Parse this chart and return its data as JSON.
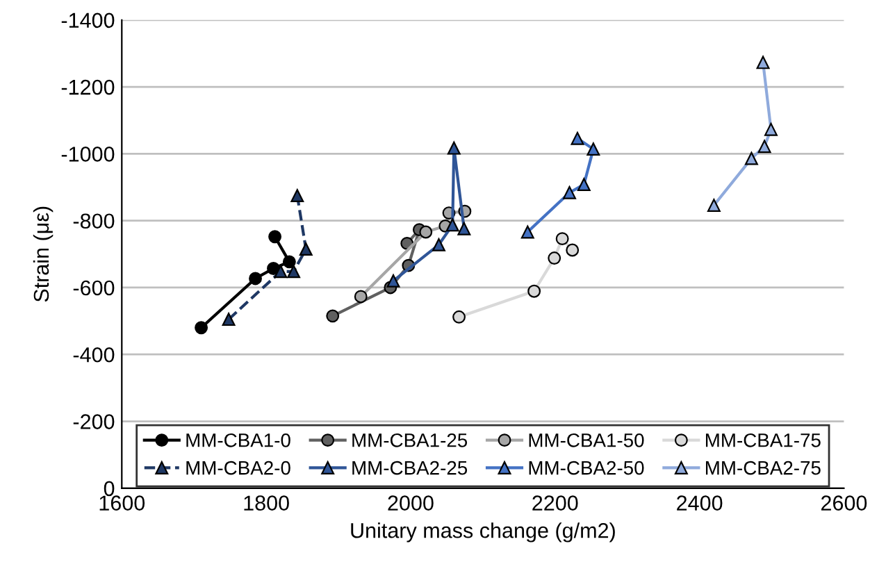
{
  "chart_data": {
    "type": "line",
    "xlabel": "Unitary mass change (g/m2)",
    "ylabel": "Strain (με)",
    "xlim": [
      1600,
      2600
    ],
    "xticks": [
      1600,
      1800,
      2000,
      2200,
      2400,
      2600
    ],
    "ylim": [
      0,
      -1400
    ],
    "yticks": [
      0,
      -200,
      -400,
      -600,
      -800,
      -1000,
      -1200,
      -1400
    ],
    "grid": "y",
    "legend": "bottom",
    "series": [
      {
        "name": "MM-CBA1-0",
        "color": "#000000",
        "marker": "circle",
        "line_style": "solid",
        "x": [
          1710,
          1785,
          1810,
          1832,
          1812
        ],
        "values": [
          -480,
          -627,
          -657,
          -677,
          -752
        ]
      },
      {
        "name": "MM-CBA1-25",
        "color": "#606060",
        "marker": "circle",
        "line_style": "solid",
        "x": [
          1892,
          1972,
          1997,
          2012,
          1995
        ],
        "values": [
          -515,
          -600,
          -666,
          -773,
          -732
        ]
      },
      {
        "name": "MM-CBA1-50",
        "color": "#a6a6a6",
        "marker": "circle",
        "line_style": "solid",
        "x": [
          1931,
          2021,
          2048,
          2053,
          2075
        ],
        "values": [
          -573,
          -766,
          -784,
          -823,
          -828
        ]
      },
      {
        "name": "MM-CBA1-75",
        "color": "#d9d9d9",
        "marker": "circle",
        "line_style": "solid",
        "x": [
          2067,
          2171,
          2199,
          2210,
          2224
        ],
        "values": [
          -512,
          -589,
          -688,
          -746,
          -712
        ]
      },
      {
        "name": "MM-CBA2-0",
        "color": "#1f3864",
        "marker": "triangle",
        "line_style": "dashed",
        "x": [
          1748,
          1820,
          1838,
          1855,
          1843
        ],
        "values": [
          -505,
          -648,
          -648,
          -715,
          -875
        ]
      },
      {
        "name": "MM-CBA2-25",
        "color": "#2f5597",
        "marker": "triangle",
        "line_style": "solid",
        "x": [
          1976,
          2039,
          2058,
          2060,
          2074
        ],
        "values": [
          -620,
          -728,
          -787,
          -1017,
          -776
        ]
      },
      {
        "name": "MM-CBA2-50",
        "color": "#4472c4",
        "marker": "triangle",
        "line_style": "solid",
        "x": [
          2162,
          2220,
          2240,
          2253,
          2231
        ],
        "values": [
          -766,
          -884,
          -908,
          -1014,
          -1046
        ]
      },
      {
        "name": "MM-CBA2-75",
        "color": "#8faadc",
        "marker": "triangle",
        "line_style": "solid",
        "x": [
          2420,
          2472,
          2490,
          2499,
          2488
        ],
        "values": [
          -846,
          -986,
          -1022,
          -1073,
          -1273
        ]
      }
    ]
  }
}
